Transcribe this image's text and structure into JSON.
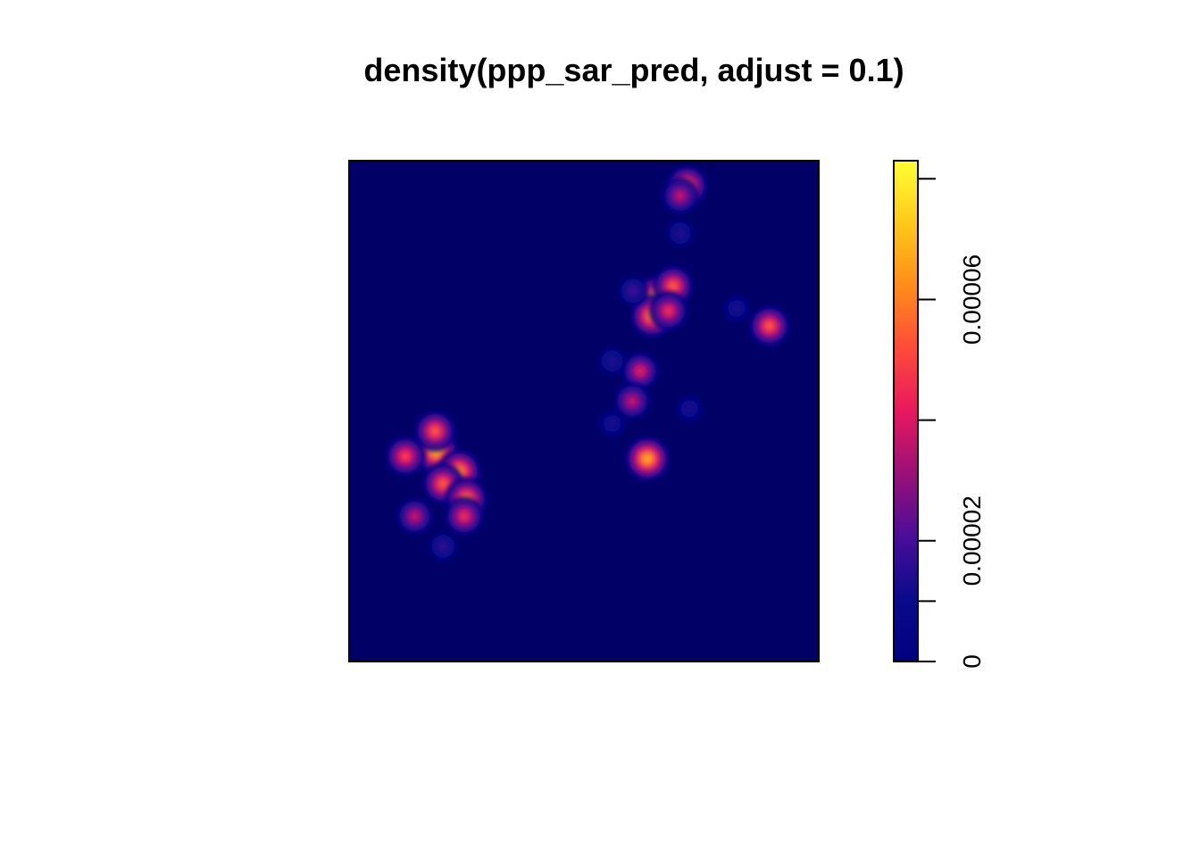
{
  "chart_data": {
    "type": "heatmap",
    "title": "density(ppp_sar_pred, adjust = 0.1)",
    "xlabel": "",
    "ylabel": "",
    "axes_shown": false,
    "colormap": "spatstat default (dark blue -> purple -> red -> orange -> yellow)",
    "color_stops": [
      "#000080",
      "#0a0a8c",
      "#4b0d9a",
      "#9a1078",
      "#e8185f",
      "#ff4a3a",
      "#ff8c1a",
      "#ffc81a",
      "#ffff33"
    ],
    "background_color": "#000066",
    "legend": {
      "position": "right",
      "range": [
        0,
        8.3e-05
      ],
      "ticks": [
        {
          "value": 0,
          "label": "0"
        },
        {
          "value": 1e-05,
          "label": ""
        },
        {
          "value": 2e-05,
          "label": "0.00002"
        },
        {
          "value": 4e-05,
          "label": ""
        },
        {
          "value": 6e-05,
          "label": "0.00006"
        },
        {
          "value": 8e-05,
          "label": ""
        }
      ]
    },
    "hotspots": [
      {
        "name": "upper-cluster",
        "x": 0.655,
        "y": 0.725,
        "value": 8.2e-05
      },
      {
        "name": "upper-cluster-b",
        "x": 0.645,
        "y": 0.69,
        "value": 7e-05
      },
      {
        "name": "upper-cluster-c",
        "x": 0.69,
        "y": 0.75,
        "value": 6e-05
      },
      {
        "name": "upper-cluster-d",
        "x": 0.68,
        "y": 0.7,
        "value": 5e-05
      },
      {
        "name": "top-spot",
        "x": 0.72,
        "y": 0.95,
        "value": 6e-05
      },
      {
        "name": "top-spot-b",
        "x": 0.705,
        "y": 0.93,
        "value": 4e-05
      },
      {
        "name": "right-spot",
        "x": 0.895,
        "y": 0.67,
        "value": 6e-05
      },
      {
        "name": "mid-spot-a",
        "x": 0.62,
        "y": 0.58,
        "value": 4.5e-05
      },
      {
        "name": "mid-spot-b",
        "x": 0.603,
        "y": 0.52,
        "value": 4e-05
      },
      {
        "name": "lower-spot",
        "x": 0.635,
        "y": 0.405,
        "value": 7.8e-05
      },
      {
        "name": "left-cluster-a",
        "x": 0.185,
        "y": 0.42,
        "value": 8e-05
      },
      {
        "name": "left-cluster-b",
        "x": 0.183,
        "y": 0.46,
        "value": 6e-05
      },
      {
        "name": "left-cluster-c",
        "x": 0.12,
        "y": 0.41,
        "value": 5.5e-05
      },
      {
        "name": "left-cluster-d",
        "x": 0.235,
        "y": 0.38,
        "value": 7e-05
      },
      {
        "name": "left-cluster-e",
        "x": 0.2,
        "y": 0.355,
        "value": 6e-05
      },
      {
        "name": "left-cluster-f",
        "x": 0.25,
        "y": 0.325,
        "value": 6.5e-05
      },
      {
        "name": "left-cluster-g",
        "x": 0.245,
        "y": 0.29,
        "value": 5e-05
      },
      {
        "name": "left-cluster-h",
        "x": 0.14,
        "y": 0.29,
        "value": 4e-05
      },
      {
        "name": "faint-a",
        "x": 0.2,
        "y": 0.23,
        "value": 1.5e-05
      },
      {
        "name": "faint-b",
        "x": 0.705,
        "y": 0.855,
        "value": 1.2e-05
      },
      {
        "name": "faint-c",
        "x": 0.56,
        "y": 0.6,
        "value": 1.2e-05
      },
      {
        "name": "faint-d",
        "x": 0.605,
        "y": 0.74,
        "value": 1.8e-05
      },
      {
        "name": "faint-e",
        "x": 0.725,
        "y": 0.505,
        "value": 1e-05
      },
      {
        "name": "faint-f",
        "x": 0.56,
        "y": 0.475,
        "value": 1e-05
      },
      {
        "name": "faint-g",
        "x": 0.825,
        "y": 0.705,
        "value": 1e-05
      }
    ]
  }
}
